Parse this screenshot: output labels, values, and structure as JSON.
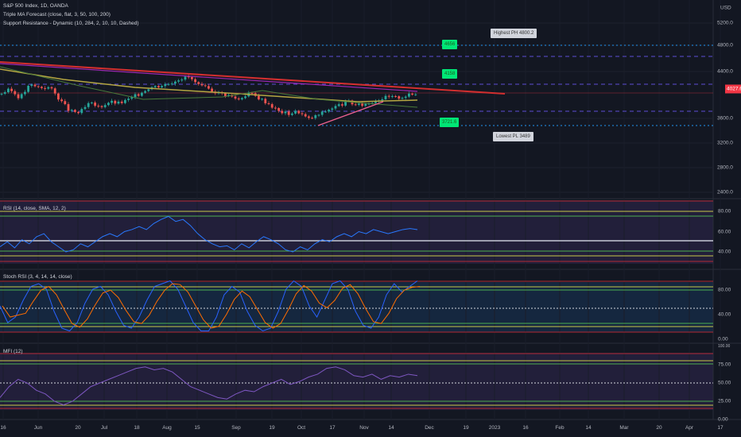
{
  "header": {
    "symbol_line": "S&P 500 Index, 1D, OANDA",
    "indicator1": "Triple MA Forecast (close, flat, 3, 50, 100, 200)",
    "indicator2": "Support Resistance - Dynamic (10, 284, 2, 10, 10, Dashed)"
  },
  "price_axis": {
    "currency": "USD",
    "labels": [
      "5200.0",
      "4800.0",
      "4400.0",
      "3600.0",
      "3200.0",
      "2800.0",
      "2400.0"
    ],
    "current_price": "4027.6"
  },
  "levels": {
    "r1": "4656",
    "r2": "4158",
    "s1": "3721.6",
    "highest": "Highest PH 4800.2",
    "lowest": "Lowest PL 3489"
  },
  "panes": {
    "rsi": {
      "title": "RSI (14, close, SMA, 12, 2)",
      "labels": [
        "80.00",
        "60.00",
        "40.00"
      ]
    },
    "stoch": {
      "title": "Stoch RSI (3, 4, 14, 14, close)",
      "labels": [
        "80.00",
        "40.00",
        "0.00"
      ]
    },
    "mfi": {
      "title": "MFI (12)",
      "labels": [
        "100.00",
        "75.00",
        "50.00",
        "25.00",
        "0.00"
      ]
    }
  },
  "time_axis": [
    "16",
    "Jun",
    "20",
    "Jul",
    "18",
    "Aug",
    "15",
    "Sep",
    "19",
    "Oct",
    "17",
    "Nov",
    "14",
    "Dec",
    "19",
    "2023",
    "16",
    "Feb",
    "14",
    "Mar",
    "20",
    "Apr",
    "17"
  ],
  "colors": {
    "up": "#26a69a",
    "down": "#ef5350",
    "trend": "#d32f2f",
    "ma_yellow": "#b5a642",
    "ma_green": "#4a7a3a"
  },
  "chart_data": {
    "type": "line",
    "price_closes": [
      4013,
      4078,
      3949,
      4155,
      4116,
      4116,
      3923,
      3729,
      3703,
      3858,
      3794,
      3884,
      3858,
      3923,
      4013,
      4116,
      4142,
      4181,
      4258,
      4284,
      4142,
      4090,
      4026,
      3987,
      3923,
      4026,
      3949,
      3858,
      3729,
      3690,
      3729,
      3600,
      3665,
      3755,
      3820,
      3884,
      3820,
      3858,
      3923,
      3961,
      3949,
      3987,
      4013
    ],
    "rsi": [
      45,
      50,
      44,
      52,
      48,
      55,
      58,
      50,
      45,
      40,
      42,
      48,
      45,
      50,
      55,
      58,
      55,
      60,
      62,
      65,
      62,
      68,
      72,
      75,
      70,
      72,
      66,
      58,
      52,
      48,
      45,
      46,
      42,
      48,
      44,
      50,
      55,
      52,
      48,
      42,
      40,
      45,
      42,
      48,
      52,
      50,
      55,
      58,
      55,
      60,
      58,
      62,
      60,
      58,
      60,
      62,
      63,
      62
    ],
    "stoch_k": [
      50,
      20,
      30,
      60,
      85,
      90,
      80,
      40,
      10,
      5,
      20,
      55,
      80,
      85,
      70,
      40,
      15,
      10,
      30,
      60,
      85,
      90,
      95,
      80,
      50,
      20,
      5,
      5,
      30,
      70,
      85,
      75,
      40,
      15,
      5,
      10,
      40,
      80,
      95,
      85,
      50,
      30,
      60,
      90,
      95,
      80,
      40,
      15,
      10,
      30,
      70,
      90,
      75,
      85,
      95
    ],
    "mfi": [
      30,
      45,
      55,
      50,
      40,
      35,
      25,
      20,
      25,
      35,
      45,
      50,
      55,
      60,
      65,
      70,
      72,
      68,
      70,
      65,
      55,
      45,
      40,
      35,
      30,
      28,
      35,
      40,
      38,
      45,
      50,
      55,
      48,
      52,
      58,
      62,
      70,
      72,
      68,
      60,
      58,
      62,
      55,
      60,
      58,
      62,
      60
    ]
  }
}
